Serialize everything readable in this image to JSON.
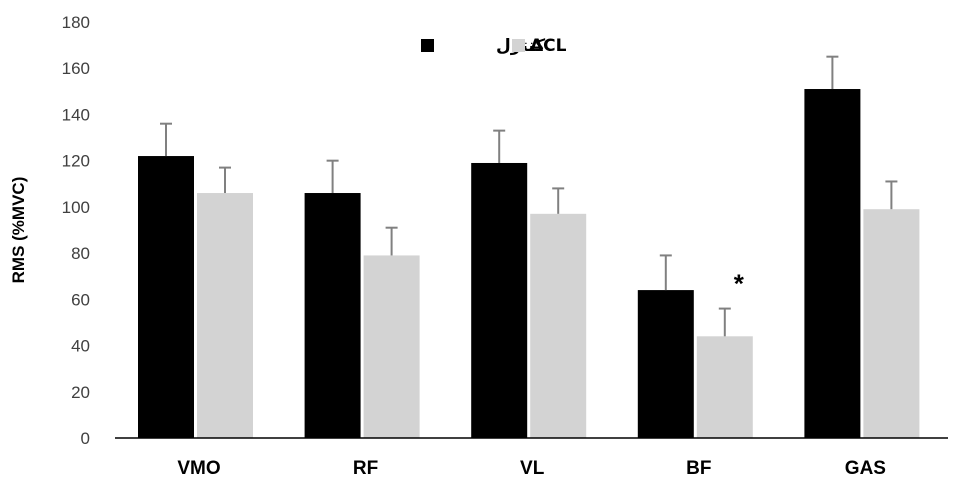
{
  "chart_data": {
    "type": "bar",
    "categories": [
      "VMO",
      "RF",
      "VL",
      "BF",
      "GAS"
    ],
    "series": [
      {
        "name": "کنترل",
        "color": "#000000",
        "values": [
          122,
          106,
          119,
          64,
          151
        ],
        "errors": [
          14,
          14,
          14,
          15,
          14
        ]
      },
      {
        "name": "ACL",
        "color": "#d3d3d3",
        "values": [
          106,
          79,
          97,
          44,
          99
        ],
        "errors": [
          11,
          12,
          11,
          12,
          12
        ]
      }
    ],
    "ylabel": "RMS (%MVC)",
    "xlabel": "",
    "ylim": [
      0,
      180
    ],
    "yticks": [
      0,
      20,
      40,
      60,
      80,
      100,
      120,
      140,
      160,
      180
    ],
    "grid": false,
    "legend_position": "top-center",
    "annotations": [
      {
        "category": "BF",
        "series": "ACL",
        "text": "*"
      }
    ]
  }
}
